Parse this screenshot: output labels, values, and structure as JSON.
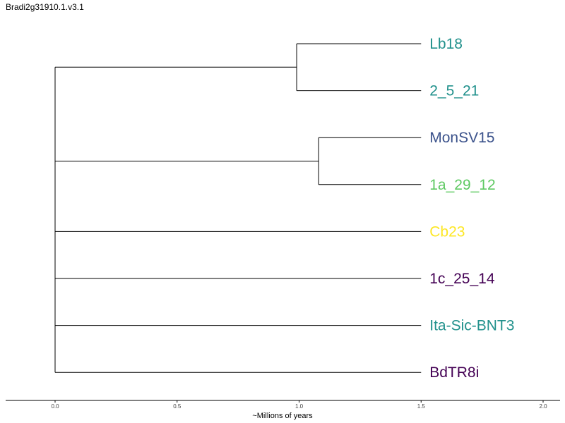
{
  "title": "Bradi2g31910.1.v3.1",
  "chart_data": {
    "type": "dendrogram",
    "xlabel": "~Millions of years",
    "xlim": [
      0.0,
      2.0
    ],
    "xticks": [
      "0.0",
      "0.5",
      "1.0",
      "1.5",
      "2.0"
    ],
    "leaves": [
      {
        "name": "Lb18",
        "color": "#21918c"
      },
      {
        "name": "2_5_21",
        "color": "#21918c"
      },
      {
        "name": "MonSV15",
        "color": "#3b528b"
      },
      {
        "name": "1a_29_12",
        "color": "#5ec962"
      },
      {
        "name": "Cb23",
        "color": "#fde725"
      },
      {
        "name": "1c_25_14",
        "color": "#440154"
      },
      {
        "name": "Ita-Sic-BNT3",
        "color": "#21918c"
      },
      {
        "name": "BdTR8i",
        "color": "#440154"
      }
    ],
    "leaf_depth": 1.5,
    "clades": [
      {
        "node_depth": 0.99,
        "children": [
          "Lb18",
          "2_5_21"
        ]
      },
      {
        "node_depth": 1.08,
        "children": [
          "MonSV15",
          "1a_29_12"
        ]
      }
    ],
    "root_depth": 0.0
  }
}
